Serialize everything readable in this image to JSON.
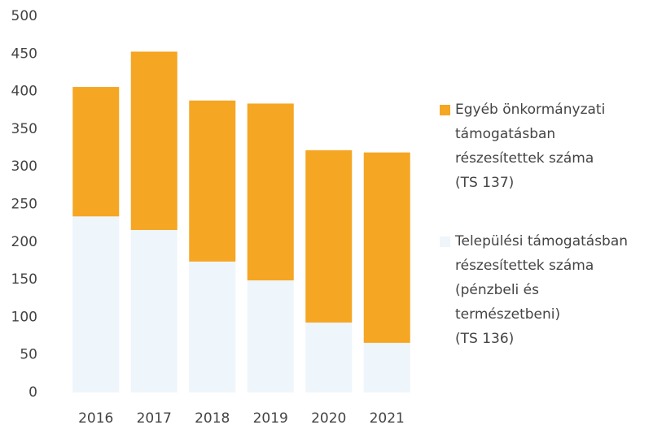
{
  "chart_data": {
    "type": "stacked_bar",
    "categories": [
      "2016",
      "2017",
      "2018",
      "2019",
      "2020",
      "2021"
    ],
    "series": [
      {
        "name": "Települési támogatásban\nrészesítettek száma\n(pénzbeli és\ntermészetbeni)\n(TS 136)",
        "color": "#eef6fb",
        "values": [
          234,
          216,
          174,
          149,
          93,
          66
        ]
      },
      {
        "name": "Egyéb önkormányzati\ntámogatásban\nrészesítettek száma\n(TS 137)",
        "color": "#f5a623",
        "values": [
          172,
          237,
          214,
          235,
          229,
          253
        ]
      }
    ],
    "ylim": [
      0,
      500
    ],
    "yticks": [
      0,
      50,
      100,
      150,
      200,
      250,
      300,
      350,
      400,
      450,
      500
    ],
    "legend": "right"
  }
}
